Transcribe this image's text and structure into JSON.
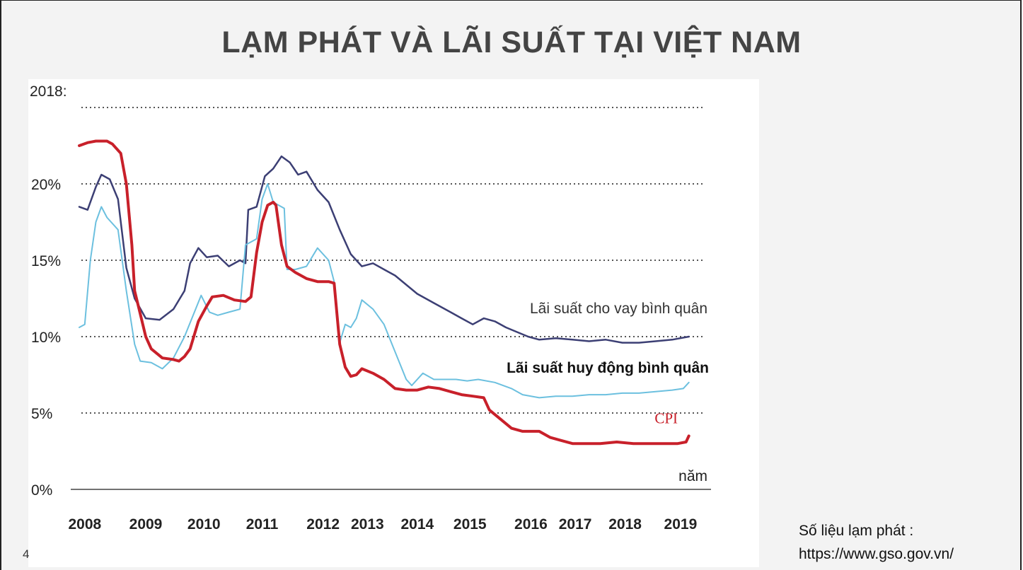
{
  "slide": {
    "title": "LẠM PHÁT VÀ LÃI SUẤT TẠI VIỆT NAM",
    "page_number": "4",
    "source_line1": "Số liệu lạm phát :",
    "source_line2": "https://www.gso.gov.vn/"
  },
  "chart_data": {
    "type": "line",
    "corner_label": "2018:",
    "x_label": "năm",
    "y_ticks": [
      "0%",
      "5%",
      "10%",
      "15%",
      "20%"
    ],
    "ylim": [
      0,
      25
    ],
    "xlim": [
      2008,
      2019.4
    ],
    "x_ticks": [
      "2008",
      "2009",
      "2010",
      "2011",
      "2012",
      "2013",
      "2014",
      "2015",
      "2016",
      "2017",
      "2018",
      "2019"
    ],
    "x_tick_positions": [
      2008.1,
      2009.2,
      2010.25,
      2011.3,
      2012.4,
      2013.2,
      2014.1,
      2015.05,
      2016.15,
      2016.95,
      2017.85,
      2018.85
    ],
    "grid": "dotted horizontal",
    "series": [
      {
        "name": "Lãi suất cho vay bình quân",
        "color": "#3c3f74",
        "points": [
          [
            2008.0,
            18.5
          ],
          [
            2008.15,
            18.3
          ],
          [
            2008.3,
            19.8
          ],
          [
            2008.4,
            20.6
          ],
          [
            2008.55,
            20.3
          ],
          [
            2008.7,
            19.0
          ],
          [
            2008.85,
            14.5
          ],
          [
            2009.0,
            12.5
          ],
          [
            2009.2,
            11.2
          ],
          [
            2009.45,
            11.1
          ],
          [
            2009.7,
            11.8
          ],
          [
            2009.9,
            13.0
          ],
          [
            2010.0,
            14.8
          ],
          [
            2010.15,
            15.8
          ],
          [
            2010.3,
            15.2
          ],
          [
            2010.5,
            15.3
          ],
          [
            2010.7,
            14.6
          ],
          [
            2010.9,
            15.0
          ],
          [
            2011.0,
            14.8
          ],
          [
            2011.05,
            18.3
          ],
          [
            2011.2,
            18.5
          ],
          [
            2011.35,
            20.5
          ],
          [
            2011.5,
            21.0
          ],
          [
            2011.65,
            21.8
          ],
          [
            2011.8,
            21.4
          ],
          [
            2011.95,
            20.6
          ],
          [
            2012.1,
            20.8
          ],
          [
            2012.3,
            19.6
          ],
          [
            2012.5,
            18.8
          ],
          [
            2012.7,
            17.0
          ],
          [
            2012.9,
            15.4
          ],
          [
            2013.1,
            14.6
          ],
          [
            2013.3,
            14.8
          ],
          [
            2013.5,
            14.4
          ],
          [
            2013.7,
            14.0
          ],
          [
            2013.9,
            13.4
          ],
          [
            2014.1,
            12.8
          ],
          [
            2014.4,
            12.2
          ],
          [
            2014.7,
            11.6
          ],
          [
            2014.9,
            11.2
          ],
          [
            2015.1,
            10.8
          ],
          [
            2015.3,
            11.2
          ],
          [
            2015.5,
            11.0
          ],
          [
            2015.7,
            10.6
          ],
          [
            2015.9,
            10.3
          ],
          [
            2016.1,
            10.0
          ],
          [
            2016.3,
            9.8
          ],
          [
            2016.6,
            9.9
          ],
          [
            2016.9,
            9.8
          ],
          [
            2017.2,
            9.7
          ],
          [
            2017.5,
            9.8
          ],
          [
            2017.8,
            9.6
          ],
          [
            2018.1,
            9.6
          ],
          [
            2018.4,
            9.7
          ],
          [
            2018.7,
            9.8
          ],
          [
            2019.0,
            10.0
          ]
        ]
      },
      {
        "name": "Lãi suất huy động bình quân",
        "color": "#6cc0df",
        "points": [
          [
            2008.0,
            10.6
          ],
          [
            2008.1,
            10.8
          ],
          [
            2008.2,
            15.0
          ],
          [
            2008.3,
            17.5
          ],
          [
            2008.4,
            18.5
          ],
          [
            2008.5,
            17.8
          ],
          [
            2008.7,
            17.0
          ],
          [
            2008.85,
            13.0
          ],
          [
            2009.0,
            9.5
          ],
          [
            2009.1,
            8.4
          ],
          [
            2009.3,
            8.3
          ],
          [
            2009.5,
            7.9
          ],
          [
            2009.7,
            8.6
          ],
          [
            2009.9,
            10.0
          ],
          [
            2010.1,
            11.8
          ],
          [
            2010.2,
            12.7
          ],
          [
            2010.35,
            11.6
          ],
          [
            2010.5,
            11.4
          ],
          [
            2010.7,
            11.6
          ],
          [
            2010.9,
            11.8
          ],
          [
            2011.0,
            16.0
          ],
          [
            2011.2,
            16.4
          ],
          [
            2011.3,
            19.0
          ],
          [
            2011.4,
            20.0
          ],
          [
            2011.5,
            18.8
          ],
          [
            2011.6,
            18.6
          ],
          [
            2011.7,
            18.4
          ],
          [
            2011.75,
            14.4
          ],
          [
            2011.9,
            14.4
          ],
          [
            2012.1,
            14.6
          ],
          [
            2012.3,
            15.8
          ],
          [
            2012.5,
            15.0
          ],
          [
            2012.6,
            13.6
          ],
          [
            2012.7,
            9.6
          ],
          [
            2012.8,
            10.8
          ],
          [
            2012.9,
            10.6
          ],
          [
            2013.0,
            11.2
          ],
          [
            2013.1,
            12.4
          ],
          [
            2013.3,
            11.8
          ],
          [
            2013.5,
            10.8
          ],
          [
            2013.7,
            9.0
          ],
          [
            2013.9,
            7.2
          ],
          [
            2014.0,
            6.8
          ],
          [
            2014.2,
            7.6
          ],
          [
            2014.4,
            7.2
          ],
          [
            2014.6,
            7.2
          ],
          [
            2014.8,
            7.2
          ],
          [
            2015.0,
            7.1
          ],
          [
            2015.2,
            7.2
          ],
          [
            2015.5,
            7.0
          ],
          [
            2015.8,
            6.6
          ],
          [
            2016.0,
            6.2
          ],
          [
            2016.3,
            6.0
          ],
          [
            2016.6,
            6.1
          ],
          [
            2016.9,
            6.1
          ],
          [
            2017.2,
            6.2
          ],
          [
            2017.5,
            6.2
          ],
          [
            2017.8,
            6.3
          ],
          [
            2018.1,
            6.3
          ],
          [
            2018.4,
            6.4
          ],
          [
            2018.7,
            6.5
          ],
          [
            2018.9,
            6.6
          ],
          [
            2019.0,
            7.0
          ]
        ]
      },
      {
        "name": "CPI",
        "color": "#c8202a",
        "points": [
          [
            2008.0,
            22.5
          ],
          [
            2008.15,
            22.7
          ],
          [
            2008.3,
            22.8
          ],
          [
            2008.5,
            22.8
          ],
          [
            2008.6,
            22.6
          ],
          [
            2008.75,
            22.0
          ],
          [
            2008.85,
            20.0
          ],
          [
            2008.95,
            16.0
          ],
          [
            2009.0,
            13.0
          ],
          [
            2009.1,
            11.5
          ],
          [
            2009.2,
            10.0
          ],
          [
            2009.3,
            9.2
          ],
          [
            2009.5,
            8.6
          ],
          [
            2009.7,
            8.5
          ],
          [
            2009.8,
            8.4
          ],
          [
            2009.9,
            8.7
          ],
          [
            2010.0,
            9.2
          ],
          [
            2010.15,
            11.0
          ],
          [
            2010.3,
            12.0
          ],
          [
            2010.4,
            12.6
          ],
          [
            2010.6,
            12.7
          ],
          [
            2010.8,
            12.4
          ],
          [
            2011.0,
            12.3
          ],
          [
            2011.1,
            12.6
          ],
          [
            2011.2,
            15.5
          ],
          [
            2011.3,
            17.5
          ],
          [
            2011.4,
            18.6
          ],
          [
            2011.5,
            18.8
          ],
          [
            2011.55,
            18.6
          ],
          [
            2011.65,
            16.0
          ],
          [
            2011.75,
            14.6
          ],
          [
            2011.9,
            14.2
          ],
          [
            2012.1,
            13.8
          ],
          [
            2012.3,
            13.6
          ],
          [
            2012.5,
            13.6
          ],
          [
            2012.6,
            13.5
          ],
          [
            2012.7,
            9.5
          ],
          [
            2012.8,
            8.0
          ],
          [
            2012.9,
            7.4
          ],
          [
            2013.0,
            7.5
          ],
          [
            2013.1,
            7.9
          ],
          [
            2013.3,
            7.6
          ],
          [
            2013.5,
            7.2
          ],
          [
            2013.7,
            6.6
          ],
          [
            2013.9,
            6.5
          ],
          [
            2014.1,
            6.5
          ],
          [
            2014.3,
            6.7
          ],
          [
            2014.5,
            6.6
          ],
          [
            2014.7,
            6.4
          ],
          [
            2014.9,
            6.2
          ],
          [
            2015.1,
            6.1
          ],
          [
            2015.3,
            6.0
          ],
          [
            2015.4,
            5.2
          ],
          [
            2015.6,
            4.6
          ],
          [
            2015.8,
            4.0
          ],
          [
            2016.0,
            3.8
          ],
          [
            2016.3,
            3.8
          ],
          [
            2016.5,
            3.4
          ],
          [
            2016.7,
            3.2
          ],
          [
            2016.9,
            3.0
          ],
          [
            2017.1,
            3.0
          ],
          [
            2017.4,
            3.0
          ],
          [
            2017.7,
            3.1
          ],
          [
            2018.0,
            3.0
          ],
          [
            2018.3,
            3.0
          ],
          [
            2018.6,
            3.0
          ],
          [
            2018.8,
            3.0
          ],
          [
            2018.95,
            3.1
          ],
          [
            2019.0,
            3.5
          ]
        ]
      }
    ],
    "annotations": [
      {
        "text": "Lãi suất cho vay bình quân",
        "series": 0
      },
      {
        "text": "Lãi suất huy động bình quân",
        "series": 1
      },
      {
        "text": "CPI",
        "series": 2
      }
    ]
  }
}
